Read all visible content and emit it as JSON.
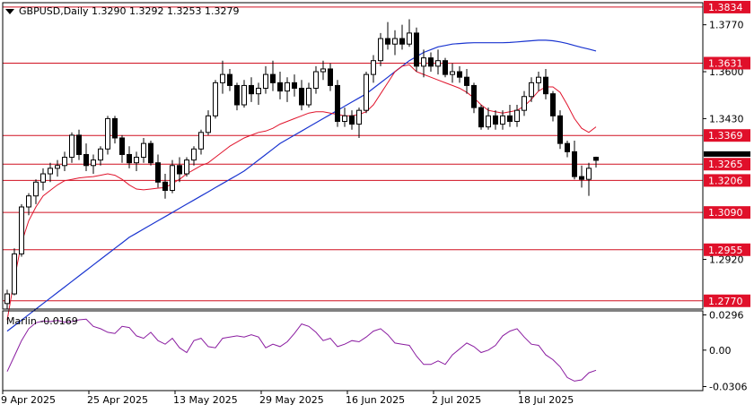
{
  "header": {
    "symbol_line": "GBPUSD,Daily  1.3290 1.3292 1.3253 1.3279"
  },
  "colors": {
    "bull": "#ffffff",
    "bear": "#000000",
    "wick": "#000000",
    "ma_fast": "#e0142c",
    "ma_slow": "#1a35d0",
    "levels": "#d01020",
    "level_label_bg": "#e0102a",
    "level_label_text": "#ffffff",
    "oscillator": "#8a1ca0",
    "frame": "#000000"
  },
  "chart_data": [
    {
      "type": "candlestick",
      "title": "GBPUSD,Daily",
      "ohlc_header": [
        "1.3290",
        "1.3292",
        "1.3253",
        "1.3279"
      ],
      "ylim": [
        1.274,
        1.385
      ],
      "price_ticks": [
        "1.3770",
        "1.3600",
        "1.3430",
        "1.2920"
      ],
      "x_ticks": [
        {
          "label": "9 Apr 2025",
          "index": 0
        },
        {
          "label": "25 Apr 2025",
          "index": 12
        },
        {
          "label": "13 May 2025",
          "index": 24
        },
        {
          "label": "29 May 2025",
          "index": 36
        },
        {
          "label": "16 Jun 2025",
          "index": 48
        },
        {
          "label": "2 Jul 2025",
          "index": 60
        },
        {
          "label": "18 Jul 2025",
          "index": 72
        }
      ],
      "levels": [
        {
          "value": 1.3834,
          "label": "1.3834"
        },
        {
          "value": 1.3631,
          "label": "1.3631"
        },
        {
          "value": 1.3369,
          "label": "1.3369"
        },
        {
          "value": 1.3265,
          "label": "1.3265"
        },
        {
          "value": 1.3206,
          "label": "1.3206"
        },
        {
          "value": 1.309,
          "label": "1.3090"
        },
        {
          "value": 1.2955,
          "label": "1.2955"
        },
        {
          "value": 1.277,
          "label": "1.2770"
        }
      ],
      "current_price": 1.3279,
      "candles": [
        [
          1.276,
          1.281,
          1.274,
          1.2795
        ],
        [
          1.2795,
          1.296,
          1.279,
          1.294
        ],
        [
          1.294,
          1.312,
          1.293,
          1.311
        ],
        [
          1.311,
          1.316,
          1.308,
          1.315
        ],
        [
          1.315,
          1.321,
          1.312,
          1.32
        ],
        [
          1.32,
          1.325,
          1.317,
          1.323
        ],
        [
          1.323,
          1.327,
          1.32,
          1.325
        ],
        [
          1.325,
          1.328,
          1.322,
          1.326
        ],
        [
          1.326,
          1.331,
          1.324,
          1.329
        ],
        [
          1.329,
          1.338,
          1.327,
          1.337
        ],
        [
          1.337,
          1.339,
          1.328,
          1.33
        ],
        [
          1.33,
          1.334,
          1.324,
          1.326
        ],
        [
          1.326,
          1.33,
          1.323,
          1.328
        ],
        [
          1.328,
          1.333,
          1.326,
          1.332
        ],
        [
          1.332,
          1.344,
          1.33,
          1.343
        ],
        [
          1.343,
          1.344,
          1.334,
          1.336
        ],
        [
          1.336,
          1.337,
          1.327,
          1.33
        ],
        [
          1.33,
          1.333,
          1.325,
          1.327
        ],
        [
          1.327,
          1.331,
          1.324,
          1.329
        ],
        [
          1.329,
          1.336,
          1.327,
          1.334
        ],
        [
          1.334,
          1.335,
          1.326,
          1.327
        ],
        [
          1.327,
          1.33,
          1.318,
          1.32
        ],
        [
          1.32,
          1.323,
          1.314,
          1.317
        ],
        [
          1.317,
          1.328,
          1.316,
          1.326
        ],
        [
          1.326,
          1.329,
          1.32,
          1.323
        ],
        [
          1.323,
          1.329,
          1.322,
          1.328
        ],
        [
          1.328,
          1.333,
          1.326,
          1.332
        ],
        [
          1.332,
          1.339,
          1.33,
          1.338
        ],
        [
          1.338,
          1.346,
          1.337,
          1.344
        ],
        [
          1.344,
          1.357,
          1.343,
          1.356
        ],
        [
          1.356,
          1.364,
          1.352,
          1.359
        ],
        [
          1.359,
          1.361,
          1.353,
          1.355
        ],
        [
          1.355,
          1.356,
          1.346,
          1.348
        ],
        [
          1.348,
          1.357,
          1.347,
          1.355
        ],
        [
          1.355,
          1.358,
          1.349,
          1.352
        ],
        [
          1.352,
          1.356,
          1.348,
          1.354
        ],
        [
          1.354,
          1.362,
          1.352,
          1.359
        ],
        [
          1.359,
          1.364,
          1.353,
          1.356
        ],
        [
          1.356,
          1.36,
          1.35,
          1.353
        ],
        [
          1.353,
          1.358,
          1.349,
          1.356
        ],
        [
          1.356,
          1.359,
          1.351,
          1.354
        ],
        [
          1.354,
          1.357,
          1.346,
          1.348
        ],
        [
          1.348,
          1.356,
          1.347,
          1.354
        ],
        [
          1.354,
          1.362,
          1.352,
          1.36
        ],
        [
          1.36,
          1.364,
          1.357,
          1.361
        ],
        [
          1.361,
          1.363,
          1.353,
          1.355
        ],
        [
          1.355,
          1.357,
          1.34,
          1.342
        ],
        [
          1.342,
          1.347,
          1.34,
          1.344
        ],
        [
          1.344,
          1.346,
          1.339,
          1.341
        ],
        [
          1.341,
          1.347,
          1.336,
          1.346
        ],
        [
          1.346,
          1.36,
          1.345,
          1.359
        ],
        [
          1.359,
          1.366,
          1.356,
          1.364
        ],
        [
          1.364,
          1.374,
          1.362,
          1.372
        ],
        [
          1.372,
          1.378,
          1.368,
          1.37
        ],
        [
          1.37,
          1.375,
          1.366,
          1.372
        ],
        [
          1.372,
          1.377,
          1.368,
          1.37
        ],
        [
          1.37,
          1.379,
          1.369,
          1.374
        ],
        [
          1.374,
          1.376,
          1.36,
          1.362
        ],
        [
          1.362,
          1.368,
          1.358,
          1.365
        ],
        [
          1.365,
          1.367,
          1.36,
          1.362
        ],
        [
          1.362,
          1.368,
          1.359,
          1.364
        ],
        [
          1.364,
          1.365,
          1.358,
          1.359
        ],
        [
          1.359,
          1.363,
          1.356,
          1.36
        ],
        [
          1.36,
          1.362,
          1.356,
          1.358
        ],
        [
          1.358,
          1.361,
          1.352,
          1.355
        ],
        [
          1.355,
          1.356,
          1.345,
          1.347
        ],
        [
          1.347,
          1.348,
          1.339,
          1.34
        ],
        [
          1.34,
          1.347,
          1.339,
          1.344
        ],
        [
          1.344,
          1.346,
          1.339,
          1.341
        ],
        [
          1.341,
          1.346,
          1.339,
          1.344
        ],
        [
          1.344,
          1.348,
          1.34,
          1.342
        ],
        [
          1.342,
          1.348,
          1.34,
          1.346
        ],
        [
          1.346,
          1.353,
          1.344,
          1.351
        ],
        [
          1.351,
          1.358,
          1.349,
          1.356
        ],
        [
          1.356,
          1.36,
          1.353,
          1.358
        ],
        [
          1.358,
          1.361,
          1.35,
          1.352
        ],
        [
          1.352,
          1.353,
          1.342,
          1.344
        ],
        [
          1.344,
          1.346,
          1.332,
          1.334
        ],
        [
          1.334,
          1.335,
          1.329,
          1.331
        ],
        [
          1.331,
          1.335,
          1.321,
          1.322
        ],
        [
          1.322,
          1.326,
          1.318,
          1.321
        ],
        [
          1.321,
          1.327,
          1.315,
          1.325
        ],
        [
          1.329,
          1.3292,
          1.3253,
          1.3279
        ]
      ],
      "ma_fast": [
        1.27,
        1.285,
        1.298,
        1.306,
        1.311,
        1.315,
        1.317,
        1.319,
        1.3205,
        1.321,
        1.3215,
        1.3218,
        1.322,
        1.3225,
        1.323,
        1.3225,
        1.321,
        1.319,
        1.3175,
        1.3172,
        1.3175,
        1.3178,
        1.318,
        1.3195,
        1.321,
        1.323,
        1.3245,
        1.326,
        1.327,
        1.329,
        1.331,
        1.333,
        1.3345,
        1.336,
        1.337,
        1.338,
        1.3385,
        1.3395,
        1.341,
        1.342,
        1.343,
        1.344,
        1.345,
        1.3455,
        1.3455,
        1.345,
        1.3445,
        1.344,
        1.344,
        1.3445,
        1.3455,
        1.348,
        1.352,
        1.356,
        1.36,
        1.362,
        1.3625,
        1.36,
        1.359,
        1.358,
        1.357,
        1.356,
        1.355,
        1.354,
        1.3525,
        1.3505,
        1.348,
        1.346,
        1.3455,
        1.345,
        1.3455,
        1.346,
        1.3475,
        1.35,
        1.353,
        1.3545,
        1.3545,
        1.3525,
        1.348,
        1.343,
        1.3395,
        1.338,
        1.34
      ],
      "ma_slow": [
        1.266,
        1.268,
        1.27,
        1.272,
        1.274,
        1.276,
        1.278,
        1.28,
        1.282,
        1.284,
        1.286,
        1.288,
        1.29,
        1.292,
        1.294,
        1.296,
        1.298,
        1.3,
        1.3015,
        1.303,
        1.3045,
        1.306,
        1.3075,
        1.309,
        1.3105,
        1.312,
        1.3135,
        1.315,
        1.3165,
        1.318,
        1.3195,
        1.321,
        1.3225,
        1.324,
        1.326,
        1.328,
        1.33,
        1.332,
        1.334,
        1.3355,
        1.337,
        1.3385,
        1.34,
        1.3415,
        1.343,
        1.3445,
        1.346,
        1.3475,
        1.349,
        1.3505,
        1.352,
        1.354,
        1.356,
        1.358,
        1.36,
        1.362,
        1.364,
        1.3655,
        1.367,
        1.368,
        1.369,
        1.3695,
        1.37,
        1.3702,
        1.3704,
        1.3705,
        1.3705,
        1.3705,
        1.3705,
        1.3705,
        1.3706,
        1.3708,
        1.371,
        1.3712,
        1.3714,
        1.3714,
        1.3712,
        1.3708,
        1.3702,
        1.3695,
        1.3688,
        1.3682,
        1.3675
      ]
    },
    {
      "type": "line",
      "title": "Marlin -0.0169",
      "ylim": [
        -0.034,
        0.033
      ],
      "y_ticks": [
        "0.0296",
        "0.00",
        "-0.0306"
      ],
      "series": [
        {
          "name": "Marlin",
          "values": [
            -0.018,
            -0.005,
            0.008,
            0.018,
            0.023,
            0.0245,
            0.024,
            0.025,
            0.0235,
            0.024,
            0.0255,
            0.026,
            0.02,
            0.018,
            0.015,
            0.014,
            0.02,
            0.019,
            0.012,
            0.01,
            0.015,
            0.008,
            0.005,
            0.01,
            0.002,
            -0.002,
            0.008,
            0.01,
            0.003,
            0.002,
            0.01,
            0.011,
            0.012,
            0.011,
            0.013,
            0.011,
            0.002,
            0.005,
            0.003,
            0.007,
            0.014,
            0.022,
            0.02,
            0.015,
            0.008,
            0.01,
            0.003,
            0.005,
            0.008,
            0.007,
            0.011,
            0.016,
            0.018,
            0.013,
            0.006,
            0.005,
            0.004,
            -0.005,
            -0.012,
            -0.012,
            -0.009,
            -0.012,
            -0.004,
            0.001,
            0.006,
            0.003,
            -0.002,
            0.0,
            0.004,
            0.012,
            0.016,
            0.018,
            0.011,
            0.005,
            0.004,
            -0.004,
            -0.008,
            -0.014,
            -0.023,
            -0.026,
            -0.025,
            -0.019,
            -0.0169
          ]
        }
      ]
    }
  ]
}
